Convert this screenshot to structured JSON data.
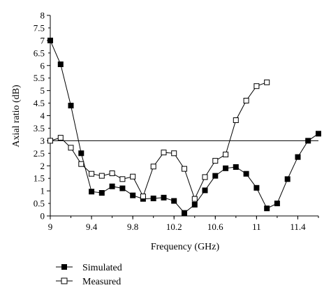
{
  "chart_data": {
    "type": "line",
    "title": "",
    "xlabel": "Frequency (GHz)",
    "ylabel": "Axial ratio (dB)",
    "xlim": [
      9,
      11.6
    ],
    "ylim": [
      0,
      8
    ],
    "x_ticks": [
      "9",
      "9.4",
      "9.8",
      "10.2",
      "10.6",
      "11",
      "11.4"
    ],
    "y_ticks": [
      "0",
      "0.5",
      "1",
      "1.5",
      "2",
      "2.5",
      "3",
      "3.5",
      "4",
      "4.5",
      "5",
      "5.5",
      "6",
      "6.5",
      "7",
      "7.5",
      "8"
    ],
    "reference_line": {
      "y": 3
    },
    "grid": false,
    "legend_position": "bottom-left",
    "series": [
      {
        "name": "Simulated",
        "marker": "filled-square",
        "color": "#000000",
        "x": [
          9.0,
          9.1,
          9.2,
          9.3,
          9.4,
          9.5,
          9.6,
          9.7,
          9.8,
          9.9,
          10.0,
          10.1,
          10.2,
          10.3,
          10.4,
          10.5,
          10.6,
          10.7,
          10.8,
          10.9,
          11.0,
          11.1,
          11.2,
          11.3,
          11.4,
          11.5,
          11.6
        ],
        "y": [
          7.0,
          6.05,
          4.4,
          2.5,
          0.97,
          0.92,
          1.18,
          1.1,
          0.82,
          0.68,
          0.7,
          0.73,
          0.6,
          0.12,
          0.45,
          1.02,
          1.6,
          1.9,
          1.95,
          1.68,
          1.12,
          0.3,
          0.5,
          1.47,
          2.35,
          3.0,
          3.28
        ]
      },
      {
        "name": "Measured",
        "marker": "open-square",
        "color": "#000000",
        "x": [
          9.0,
          9.1,
          9.2,
          9.3,
          9.4,
          9.5,
          9.6,
          9.7,
          9.8,
          9.9,
          10.0,
          10.1,
          10.2,
          10.3,
          10.4,
          10.5,
          10.6,
          10.7,
          10.8,
          10.9,
          11.0,
          11.1
        ],
        "y": [
          3.0,
          3.12,
          2.72,
          2.07,
          1.68,
          1.6,
          1.7,
          1.47,
          1.57,
          0.78,
          1.97,
          2.53,
          2.5,
          1.88,
          0.68,
          1.55,
          2.2,
          2.45,
          3.82,
          4.6,
          5.18,
          5.33
        ]
      }
    ]
  }
}
